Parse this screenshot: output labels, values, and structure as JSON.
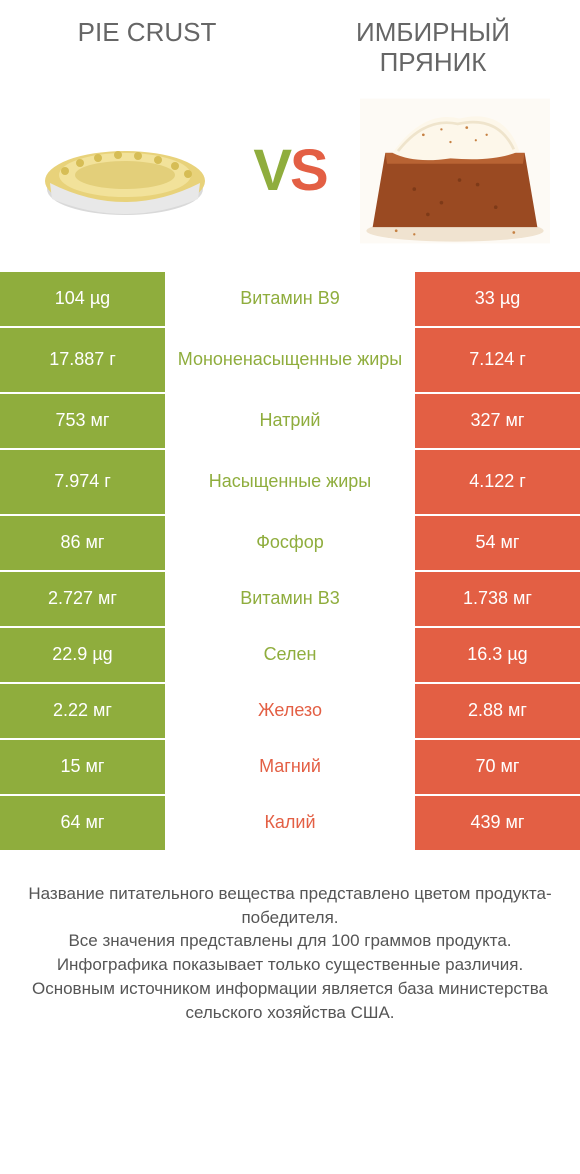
{
  "colors": {
    "green": "#8fad3d",
    "orange": "#e35f44"
  },
  "header": {
    "left_title": "PIE CRUST",
    "right_title": "ИМБИРНЫЙ ПРЯНИК",
    "vs_v": "V",
    "vs_s": "S"
  },
  "rows": [
    {
      "left": "104 µg",
      "label": "Витамин B9",
      "right": "33 µg",
      "winner": "left",
      "tall": false
    },
    {
      "left": "17.887 г",
      "label": "Мононенасыщенные жиры",
      "right": "7.124 г",
      "winner": "left",
      "tall": true
    },
    {
      "left": "753 мг",
      "label": "Натрий",
      "right": "327 мг",
      "winner": "left",
      "tall": false
    },
    {
      "left": "7.974 г",
      "label": "Насыщенные жиры",
      "right": "4.122 г",
      "winner": "left",
      "tall": true
    },
    {
      "left": "86 мг",
      "label": "Фосфор",
      "right": "54 мг",
      "winner": "left",
      "tall": false
    },
    {
      "left": "2.727 мг",
      "label": "Витамин B3",
      "right": "1.738 мг",
      "winner": "left",
      "tall": false
    },
    {
      "left": "22.9 µg",
      "label": "Селен",
      "right": "16.3 µg",
      "winner": "left",
      "tall": false
    },
    {
      "left": "2.22 мг",
      "label": "Железо",
      "right": "2.88 мг",
      "winner": "right",
      "tall": false
    },
    {
      "left": "15 мг",
      "label": "Магний",
      "right": "70 мг",
      "winner": "right",
      "tall": false
    },
    {
      "left": "64 мг",
      "label": "Калий",
      "right": "439 мг",
      "winner": "right",
      "tall": false
    }
  ],
  "footnote": "Название питательного вещества представлено цветом продукта-победителя.\nВсе значения представлены для 100 граммов продукта.\nИнфографика показывает только существенные различия.\nОсновным источником информации является база министерства сельского хозяйства США."
}
